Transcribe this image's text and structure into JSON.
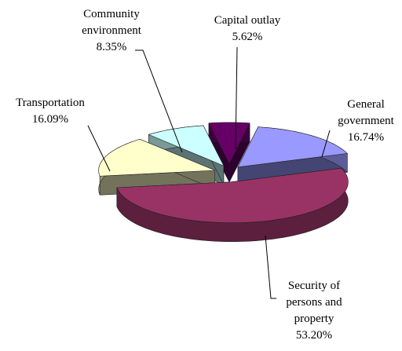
{
  "chart_data": {
    "type": "pie",
    "categories": [
      "Capital outlay",
      "General government",
      "Security of persons and property",
      "Transportation",
      "Community environment"
    ],
    "values": [
      5.62,
      16.74,
      53.2,
      16.09,
      8.35
    ],
    "value_labels": [
      "5.62%",
      "16.74%",
      "53.20%",
      "16.09%",
      "8.35%"
    ],
    "colors": [
      "#660066",
      "#9999ff",
      "#993366",
      "#ffffcc",
      "#ccffff"
    ]
  }
}
